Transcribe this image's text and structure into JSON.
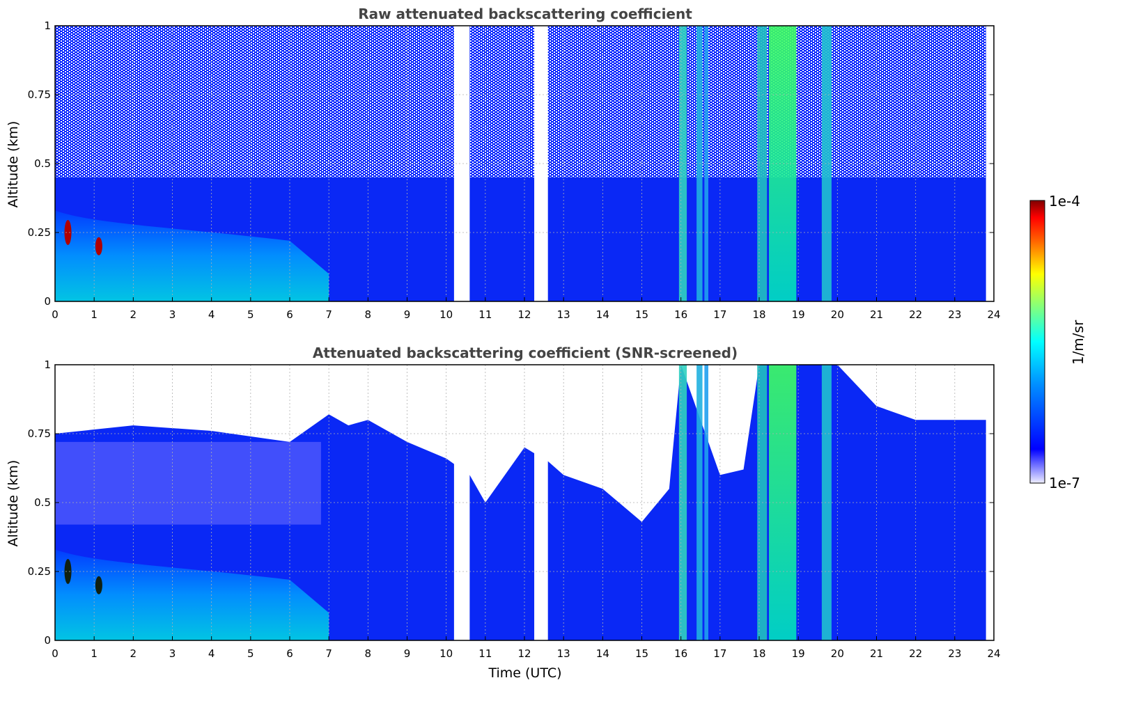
{
  "chart_data": [
    {
      "type": "heatmap",
      "title": "Raw attenuated backscattering coefficient",
      "xlabel": "",
      "ylabel": "Altitude (km)",
      "xlim": [
        0,
        24
      ],
      "ylim": [
        0,
        1
      ],
      "xticks": [
        "0",
        "1",
        "2",
        "3",
        "4",
        "5",
        "6",
        "7",
        "8",
        "9",
        "10",
        "11",
        "12",
        "13",
        "14",
        "15",
        "16",
        "17",
        "18",
        "19",
        "20",
        "21",
        "22",
        "23",
        "24"
      ],
      "yticks": [
        "0",
        "0.25",
        "0.5",
        "0.75",
        "1"
      ],
      "grid": true,
      "data_gaps_utc": [
        [
          10.2,
          10.6
        ],
        [
          12.25,
          12.6
        ]
      ],
      "features": [
        {
          "label": "low aerosol layer",
          "x": [
            0.0,
            2.5
          ],
          "y": [
            0.0,
            0.3
          ],
          "level": "high"
        },
        {
          "label": "strong peaks",
          "x": [
            0.3,
            1.2
          ],
          "y": [
            0.15,
            0.3
          ],
          "level": "1e-4"
        },
        {
          "label": "precipitation/cloud columns",
          "x": [
            18.0,
            19.0
          ],
          "y": [
            0.0,
            1.0
          ],
          "level": "high"
        },
        {
          "label": "cloud columns",
          "x": [
            16.0,
            20.0
          ],
          "y": [
            0.0,
            1.0
          ],
          "level": "medium"
        }
      ]
    },
    {
      "type": "heatmap",
      "title": "Attenuated backscattering coefficient (SNR-screened)",
      "xlabel": "Time (UTC)",
      "ylabel": "Altitude (km)",
      "xlim": [
        0,
        24
      ],
      "ylim": [
        0,
        1
      ],
      "xticks": [
        "0",
        "1",
        "2",
        "3",
        "4",
        "5",
        "6",
        "7",
        "8",
        "9",
        "10",
        "11",
        "12",
        "13",
        "14",
        "15",
        "16",
        "17",
        "18",
        "19",
        "20",
        "21",
        "22",
        "23",
        "24"
      ],
      "yticks": [
        "0",
        "0.25",
        "0.5",
        "0.75",
        "1"
      ],
      "grid": true,
      "data_gaps_utc": [
        [
          10.2,
          10.6
        ],
        [
          12.25,
          12.6
        ]
      ],
      "screened_top_km": {
        "x": [
          0,
          2,
          4,
          6,
          7,
          7.5,
          8,
          9,
          10,
          10.6,
          11,
          12,
          12.6,
          13,
          14,
          15,
          15.7,
          16,
          17,
          17.6,
          18,
          20,
          21,
          22,
          23,
          23.8
        ],
        "y": [
          0.75,
          0.78,
          0.76,
          0.72,
          0.82,
          0.78,
          0.8,
          0.72,
          0.66,
          0.6,
          0.5,
          0.7,
          0.65,
          0.6,
          0.55,
          0.43,
          0.55,
          1.0,
          0.6,
          0.62,
          1.0,
          1.0,
          0.85,
          0.8,
          0.8,
          0.8
        ]
      }
    }
  ],
  "colorbar": {
    "label": "1/m/sr",
    "max_label": "1e-4",
    "min_label": "1e-7",
    "scale": "log",
    "range": [
      1e-07,
      0.0001
    ],
    "colormap": [
      "#eeeeff",
      "#0000ff",
      "#00a0ff",
      "#00ffff",
      "#80ff80",
      "#ffff00",
      "#ff8000",
      "#ff0000",
      "#800000"
    ]
  }
}
